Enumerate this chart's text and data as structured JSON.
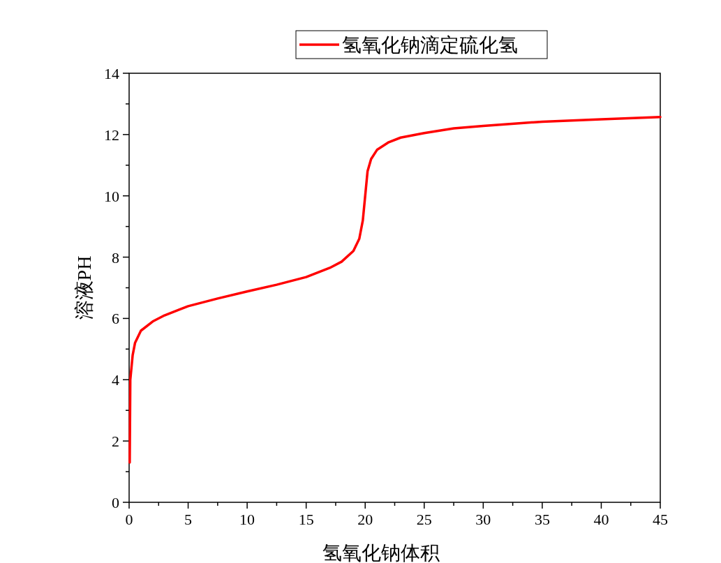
{
  "chart_data": {
    "type": "line",
    "xlabel": "氢氧化钠体积",
    "ylabel": "溶液PH",
    "legend": "top",
    "xlim": [
      0,
      45
    ],
    "ylim": [
      0,
      14
    ],
    "xticks": [
      0,
      {
        "value": 2.5,
        "label": null
      },
      5,
      {
        "value": 7.5,
        "label": null
      },
      10,
      {
        "value": 12.5,
        "label": null
      },
      15,
      {
        "value": 17.5,
        "label": null
      },
      20,
      {
        "value": 22.5,
        "label": null
      },
      25,
      {
        "value": 27.5,
        "label": null
      },
      30,
      {
        "value": 32.5,
        "label": null
      },
      35,
      {
        "value": 37.5,
        "label": null
      },
      40,
      {
        "value": 42.5,
        "label": null
      },
      45
    ],
    "yticks": [
      0,
      {
        "value": 1,
        "label": null
      },
      2,
      {
        "value": 3,
        "label": null
      },
      4,
      {
        "value": 5,
        "label": null
      },
      6,
      {
        "value": 7,
        "label": null
      },
      8,
      {
        "value": 9,
        "label": null
      },
      10,
      {
        "value": 11,
        "label": null
      },
      12,
      {
        "value": 13,
        "label": null
      },
      14
    ],
    "marker": "none",
    "line_style": "solid",
    "grid": false,
    "x": [
      0.05,
      0.1,
      0.3,
      0.5,
      1,
      2,
      3,
      5,
      7.5,
      10,
      12.5,
      15,
      17,
      18,
      19,
      19.5,
      19.8,
      20,
      20.2,
      20.5,
      21,
      22,
      23,
      25,
      27.5,
      30,
      35,
      40,
      45
    ],
    "series": [
      {
        "name": "氢氧化钠滴定硫化氢",
        "color": "#ff0000",
        "values": [
          1.3,
          4,
          4.8,
          5.2,
          5.6,
          5.9,
          6.1,
          6.4,
          6.65,
          6.88,
          7.1,
          7.35,
          7.65,
          7.85,
          8.2,
          8.6,
          9.2,
          10,
          10.8,
          11.2,
          11.5,
          11.75,
          11.9,
          12.05,
          12.2,
          12.28,
          12.42,
          12.5,
          12.57
        ]
      }
    ]
  }
}
